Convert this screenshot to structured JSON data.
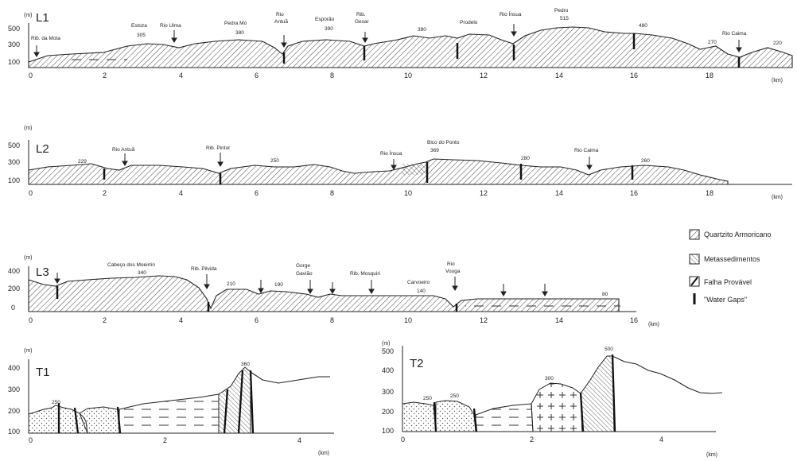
{
  "profiles": {
    "L1": {
      "name": "L1",
      "yunit": "(m)",
      "xunit": "(km)",
      "yticks": [
        "500",
        "300",
        "100"
      ],
      "xticks": [
        "0",
        "2",
        "4",
        "6",
        "8",
        "10",
        "12",
        "14",
        "16",
        "18"
      ],
      "labels": {
        "rib_mota": "Rib. da Mota",
        "estoza": "Estoza",
        "estoza_v": "305",
        "rio_unia": "Rio Ulma",
        "pedra_mo": "Pedra Mó",
        "pedra_mo_v": "380",
        "rio_antua_1": "Rio",
        "rio_antua_2": "Antuã",
        "esporao": "Esporão",
        "esporao_v": "390",
        "rib_gesar_1": "Rib.",
        "rib_gesar_2": "Gesar",
        "v390": "390",
        "prodelo": "Prodelo",
        "rio_inssa": "Rio Ínsua",
        "pedro": "Pedro",
        "pedro_v": "515",
        "v480": "480",
        "v270": "270",
        "rio_caima": "Rio Caima",
        "v220": "220"
      }
    },
    "L2": {
      "name": "L2",
      "yunit": "(m)",
      "xunit": "(km)",
      "yticks": [
        "500",
        "300",
        "100"
      ],
      "xticks": [
        "0",
        "2",
        "4",
        "6",
        "8",
        "10",
        "12",
        "14",
        "16",
        "18"
      ],
      "labels": {
        "v229": "229",
        "rio_antua": "Rio Antuã",
        "rib_pintor": "Rib. Pintor",
        "v250": "250",
        "rio_insua": "Rio Ínsua",
        "bico_1": "Bico do Ponto",
        "bico_v": "369",
        "v280": "280",
        "rio_caima": "Rio Caima",
        "v260": "260"
      }
    },
    "L3": {
      "name": "L3",
      "yunit": "(m)",
      "xunit": "(km)",
      "yticks": [
        "400",
        "200",
        "0"
      ],
      "xticks": [
        "0",
        "2",
        "4",
        "6",
        "8",
        "10",
        "12",
        "14",
        "16"
      ],
      "labels": {
        "cabeco": "Cabeço dos Moeirrin",
        "cabeco_v": "340",
        "rib_pilvida": "Rib. Pilvida",
        "v210": "210",
        "v190": "190",
        "gorge_1": "Gorge",
        "gorge_2": "Gavião",
        "rib_mosquiri": "Rib. Mosquiri",
        "carvoeiro": "Carvoeiro",
        "carvoeiro_v": "140",
        "rio_vouga_1": "Rio",
        "rio_vouga_2": "Vouga",
        "v80": "80"
      }
    },
    "T1": {
      "name": "T1",
      "yunit": "(m)",
      "xunit": "(km)",
      "yticks": [
        "400",
        "300",
        "200",
        "100"
      ],
      "xticks": [
        "0",
        "2",
        "4"
      ],
      "labels": {
        "v250": "250",
        "v360": "360"
      }
    },
    "T2": {
      "name": "T2",
      "yunit": "(m)",
      "xunit": "(km)",
      "yticks": [
        "500",
        "400",
        "300",
        "200",
        "100"
      ],
      "xticks": [
        "0",
        "2",
        "4"
      ],
      "labels": {
        "v250a": "250",
        "v250b": "250",
        "v300": "300",
        "v500": "500"
      }
    }
  },
  "legend": {
    "quartzito": "Quartzito Armoricano",
    "metassedimentos": "Metassedimentos",
    "falha": "Falha Provável",
    "water_gaps": "\"Water Gaps\""
  }
}
